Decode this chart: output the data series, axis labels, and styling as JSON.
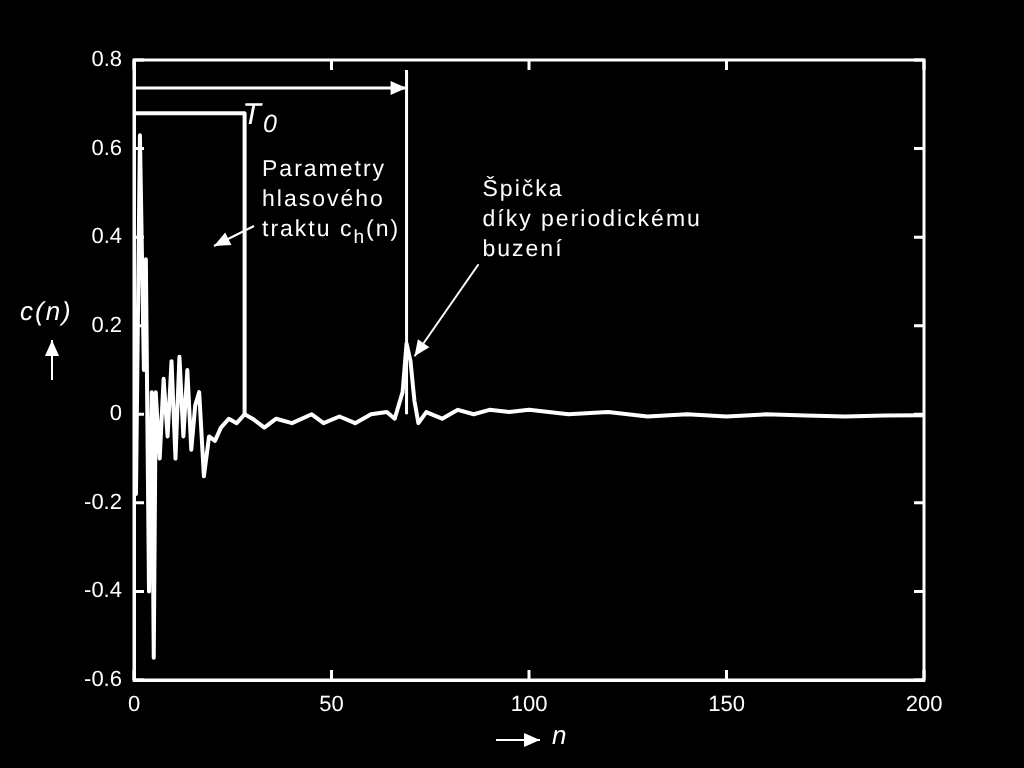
{
  "chart_data": {
    "type": "line",
    "xlabel": "n",
    "ylabel": "c(n)",
    "xlim": [
      0,
      200
    ],
    "ylim": [
      -0.6,
      0.8
    ],
    "xticks": [
      0,
      50,
      100,
      150,
      200
    ],
    "yticks": [
      -0.6,
      -0.4,
      -0.2,
      0,
      0.2,
      0.4,
      0.6,
      0.8
    ],
    "grid": false,
    "series": [
      {
        "color": "#ffffff",
        "x": [
          0,
          0.5,
          1.5,
          2.5,
          3,
          3.8,
          4.5,
          5,
          5.5,
          6.5,
          7.5,
          8.5,
          9.5,
          10.5,
          11.5,
          12.5,
          13.5,
          14.5,
          15.5,
          16.5,
          17.7,
          19,
          20.5,
          22,
          24,
          26,
          28,
          30,
          33,
          36,
          40,
          45,
          48,
          52,
          56,
          60,
          64,
          66,
          67,
          68,
          69,
          70,
          71,
          72,
          74,
          78,
          82,
          86,
          90,
          95,
          100,
          110,
          120,
          130,
          140,
          150,
          160,
          170,
          180,
          190,
          200
        ],
        "values": [
          0.21,
          -0.18,
          0.63,
          0.1,
          0.35,
          -0.4,
          0.05,
          -0.55,
          0.05,
          -0.1,
          0.08,
          -0.05,
          0.12,
          -0.1,
          0.13,
          -0.05,
          0.1,
          -0.08,
          0.02,
          0.05,
          -0.14,
          -0.05,
          -0.06,
          -0.03,
          -0.01,
          -0.02,
          0.0,
          -0.01,
          -0.03,
          -0.01,
          -0.02,
          0.0,
          -0.02,
          -0.005,
          -0.02,
          0.0,
          0.005,
          -0.01,
          0.02,
          0.05,
          0.16,
          0.12,
          0.03,
          -0.02,
          0.005,
          -0.01,
          0.01,
          0.0,
          0.01,
          0.005,
          0.01,
          0.0,
          0.005,
          -0.005,
          0.0,
          -0.005,
          0.0,
          -0.003,
          -0.005,
          -0.003,
          -0.002
        ]
      },
      {
        "color": "#ffffff",
        "x": [
          0,
          0,
          28,
          28
        ],
        "values": [
          0,
          0.68,
          0.68,
          0
        ]
      }
    ],
    "ref_lines": [
      {
        "axis": "x",
        "value": 69,
        "label": "T$_{0}$"
      }
    ],
    "annotations": [
      "Parametry\nhlasového\ntraktu c$_{h}$(n)",
      {
        "text": "Špička\ndíky periodickému\nbuzení",
        "x": 70,
        "y": 0.14
      }
    ]
  }
}
